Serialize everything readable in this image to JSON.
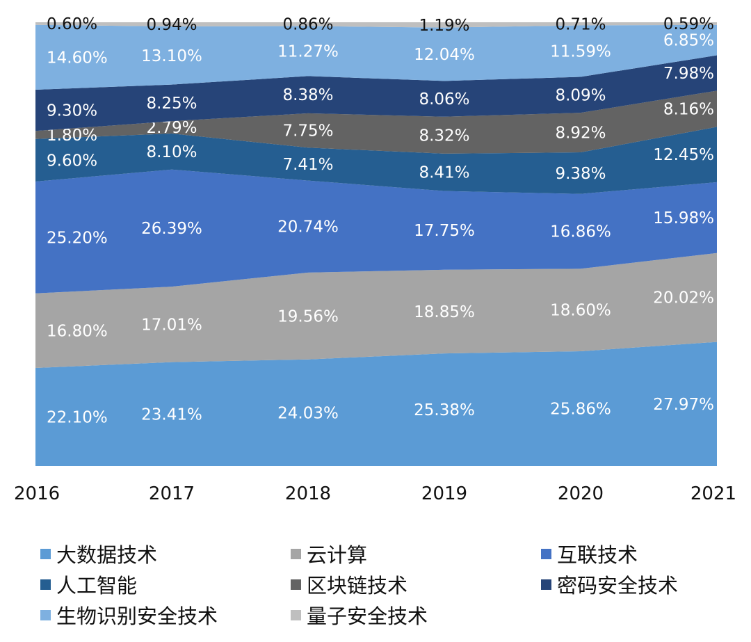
{
  "chart_data": {
    "type": "area",
    "stacked": "percent",
    "x": [
      "2016",
      "2017",
      "2018",
      "2019",
      "2020",
      "2021"
    ],
    "ylim": [
      0,
      100
    ],
    "grid": false,
    "legend_position": "bottom",
    "series": [
      {
        "name": "大数据技术",
        "color": "#5B9BD5",
        "label_color": "#ffffff",
        "values": [
          22.1,
          23.41,
          24.03,
          25.38,
          25.86,
          27.97
        ],
        "labels": [
          "22.10%",
          "23.41%",
          "24.03%",
          "25.38%",
          "25.86%",
          "27.97%"
        ]
      },
      {
        "name": "云计算",
        "color": "#A5A5A5",
        "label_color": "#ffffff",
        "values": [
          16.8,
          17.01,
          19.56,
          18.85,
          18.6,
          20.02
        ],
        "labels": [
          "16.80%",
          "17.01%",
          "19.56%",
          "18.85%",
          "18.60%",
          "20.02%"
        ]
      },
      {
        "name": "互联技术",
        "color": "#4472C4",
        "label_color": "#ffffff",
        "values": [
          25.2,
          26.39,
          20.74,
          17.75,
          16.86,
          15.98
        ],
        "labels": [
          "25.20%",
          "26.39%",
          "20.74%",
          "17.75%",
          "16.86%",
          "15.98%"
        ]
      },
      {
        "name": "人工智能",
        "color": "#255E91",
        "label_color": "#ffffff",
        "values": [
          9.6,
          8.1,
          7.41,
          8.41,
          9.38,
          12.45
        ],
        "labels": [
          "9.60%",
          "8.10%",
          "7.41%",
          "8.41%",
          "9.38%",
          "12.45%"
        ]
      },
      {
        "name": "区块链技术",
        "color": "#636363",
        "label_color": "#ffffff",
        "values": [
          1.8,
          2.79,
          7.75,
          8.32,
          8.92,
          8.16
        ],
        "labels": [
          "1.80%",
          "2.79%",
          "7.75%",
          "8.32%",
          "8.92%",
          "8.16%"
        ]
      },
      {
        "name": "密码安全技术",
        "color": "#264478",
        "label_color": "#ffffff",
        "values": [
          9.3,
          8.25,
          8.38,
          8.06,
          8.09,
          7.98
        ],
        "labels": [
          "9.30%",
          "8.25%",
          "8.38%",
          "8.06%",
          "8.09%",
          "7.98%"
        ]
      },
      {
        "name": "生物识别安全技术",
        "color": "#7EB0E0",
        "label_color": "#ffffff",
        "values": [
          14.6,
          13.1,
          11.27,
          12.04,
          11.59,
          6.85
        ],
        "labels": [
          "14.60%",
          "13.10%",
          "11.27%",
          "12.04%",
          "11.59%",
          "6.85%"
        ]
      },
      {
        "name": "量子安全技术",
        "color": "#BFBFBF",
        "label_color": "#111111",
        "values": [
          0.6,
          0.94,
          0.86,
          1.19,
          0.71,
          0.59
        ],
        "labels": [
          "0.60%",
          "0.94%",
          "0.86%",
          "1.19%",
          "0.71%",
          "0.59%"
        ]
      }
    ]
  }
}
